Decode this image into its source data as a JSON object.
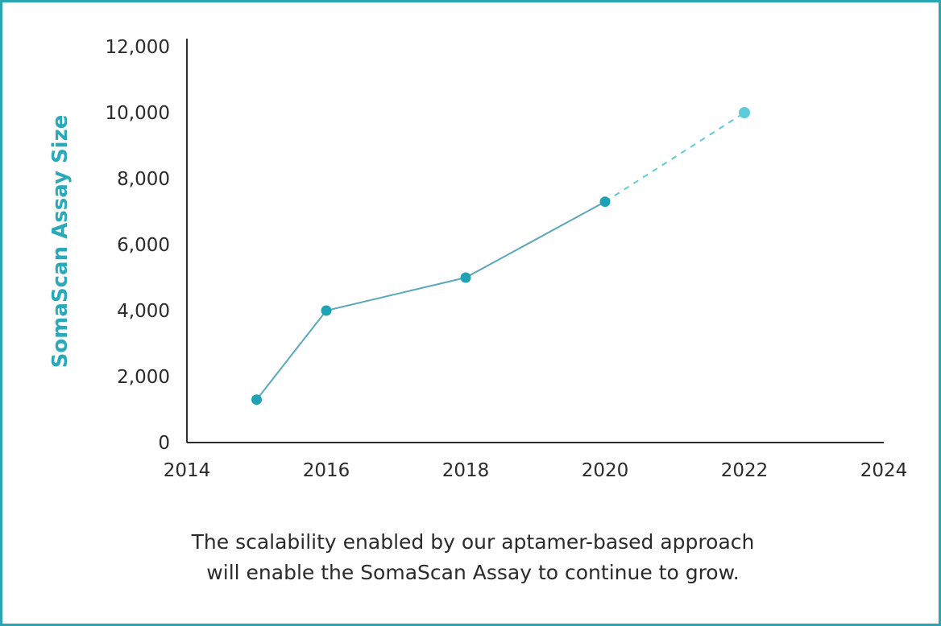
{
  "chart_data": {
    "type": "line",
    "ylabel": "SomaScan Assay Size",
    "xlabel": "",
    "xlim": [
      2014,
      2024
    ],
    "ylim": [
      0,
      12000
    ],
    "x_ticks": [
      "2014",
      "2016",
      "2018",
      "2020",
      "2022",
      "2024"
    ],
    "y_ticks": [
      "0",
      "2,000",
      "4,000",
      "6,000",
      "8,000",
      "10,000",
      "12,000"
    ],
    "series": [
      {
        "style": "solid",
        "x": [
          2015,
          2016,
          2018,
          2020
        ],
        "y": [
          1300,
          4000,
          5000,
          7300
        ]
      },
      {
        "style": "dashed",
        "x": [
          2020,
          2022
        ],
        "y": [
          7300,
          10000
        ]
      }
    ],
    "colors": {
      "line": "#5aa8b8",
      "point": "#1fa3b4",
      "projection": "#5ecbd8",
      "axis": "#2b2b2b",
      "title": "#2aaab8"
    },
    "grid": false
  },
  "caption": {
    "line1": "The scalability enabled by our aptamer-based approach",
    "line2": "will enable the SomaScan Assay to continue to grow."
  }
}
